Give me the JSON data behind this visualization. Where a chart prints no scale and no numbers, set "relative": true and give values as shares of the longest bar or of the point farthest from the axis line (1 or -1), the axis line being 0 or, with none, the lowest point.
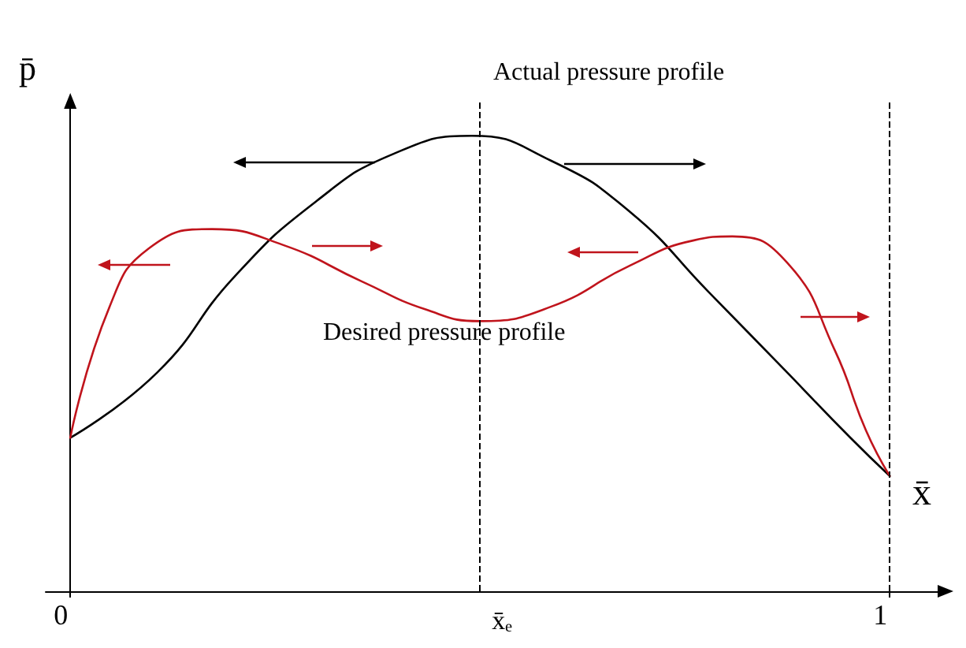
{
  "chart_data": {
    "type": "line",
    "relative": true,
    "xlabel": "x̄",
    "ylabel": "p̄",
    "xlim": [
      -0.03,
      1.07
    ],
    "xticks": [
      0,
      1
    ],
    "tick_labels": "x",
    "grid": false,
    "marker": "none",
    "line_style": "solid",
    "series": [
      {
        "color": "#000000",
        "x": [
          0,
          0.106,
          0.2,
          0.3,
          0.394,
          0.49,
          0.587,
          0.683,
          0.779,
          0.875,
          0.952,
          1
        ],
        "values": [
          0.337,
          0.48,
          0.69,
          0.856,
          0.96,
          1,
          0.945,
          0.833,
          0.657,
          0.48,
          0.337,
          0.253
        ]
      },
      {
        "color": "#c0141c",
        "x": [
          0,
          0.048,
          0.096,
          0.173,
          0.26,
          0.356,
          0.433,
          0.5,
          0.587,
          0.683,
          0.76,
          0.808,
          0.875,
          0.933,
          0.971,
          1
        ],
        "values": [
          0.337,
          0.625,
          0.753,
          0.795,
          0.76,
          0.68,
          0.619,
          0.593,
          0.625,
          0.715,
          0.77,
          0.779,
          0.721,
          0.529,
          0.353,
          0.253
        ]
      }
    ],
    "ref_lines": [
      {
        "axis": "x",
        "value": 0.5,
        "label": "x̄ₑ",
        "line_style": "dashed"
      },
      {
        "axis": "x",
        "value": 1,
        "label": null,
        "line_style": "dashed"
      }
    ],
    "annotations": [
      "Actual pressure profile",
      "Desired pressure profile"
    ]
  }
}
